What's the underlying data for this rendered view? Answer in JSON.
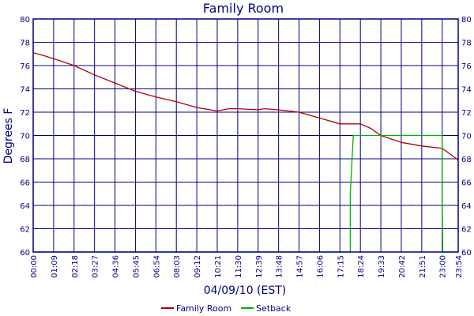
{
  "colors": {
    "axis": "#000080",
    "grid": "#000080",
    "family_room": "#b00000",
    "setback": "#00b000",
    "background": "#ffffff"
  },
  "chart_data": {
    "type": "line",
    "title": "Family Room",
    "xlabel": "04/09/10 (EST)",
    "ylabel": "Degrees F",
    "xlim": [
      "00:00",
      "23:54"
    ],
    "ylim": [
      60,
      80
    ],
    "yticks": [
      60,
      62,
      64,
      66,
      68,
      70,
      72,
      74,
      76,
      78,
      80
    ],
    "xticks": [
      "00:00",
      "01:09",
      "02:18",
      "03:27",
      "04:36",
      "05:45",
      "06:54",
      "08:03",
      "09:12",
      "10:21",
      "11:30",
      "12:39",
      "13:48",
      "14:57",
      "16:06",
      "17:15",
      "18:24",
      "19:33",
      "20:42",
      "21:51",
      "23:00",
      "23:54"
    ],
    "grid": true,
    "legend_position": "bottom",
    "series": [
      {
        "name": "Family Room",
        "color": "#b00000",
        "points": [
          [
            "00:00",
            77.1
          ],
          [
            "00:30",
            76.9
          ],
          [
            "01:09",
            76.6
          ],
          [
            "02:18",
            76.0
          ],
          [
            "03:27",
            75.2
          ],
          [
            "04:36",
            74.5
          ],
          [
            "05:45",
            73.8
          ],
          [
            "06:54",
            73.3
          ],
          [
            "08:03",
            72.9
          ],
          [
            "09:12",
            72.4
          ],
          [
            "10:21",
            72.1
          ],
          [
            "11:00",
            72.3
          ],
          [
            "11:30",
            72.3
          ],
          [
            "12:39",
            72.2
          ],
          [
            "13:00",
            72.3
          ],
          [
            "13:48",
            72.2
          ],
          [
            "14:57",
            72.0
          ],
          [
            "16:06",
            71.5
          ],
          [
            "17:15",
            71.0
          ],
          [
            "18:00",
            71.0
          ],
          [
            "18:24",
            71.0
          ],
          [
            "19:00",
            70.6
          ],
          [
            "19:33",
            70.0
          ],
          [
            "20:42",
            69.4
          ],
          [
            "21:51",
            69.1
          ],
          [
            "23:00",
            68.9
          ],
          [
            "23:54",
            67.9
          ]
        ]
      },
      {
        "name": "Setback",
        "color": "#00b000",
        "points": [
          [
            "00:00",
            60
          ],
          [
            "17:50",
            60
          ],
          [
            "17:50",
            65
          ],
          [
            "18:00",
            70
          ],
          [
            "23:00",
            70
          ],
          [
            "23:00",
            65
          ],
          [
            "23:02",
            60
          ],
          [
            "23:54",
            60
          ]
        ]
      }
    ]
  }
}
